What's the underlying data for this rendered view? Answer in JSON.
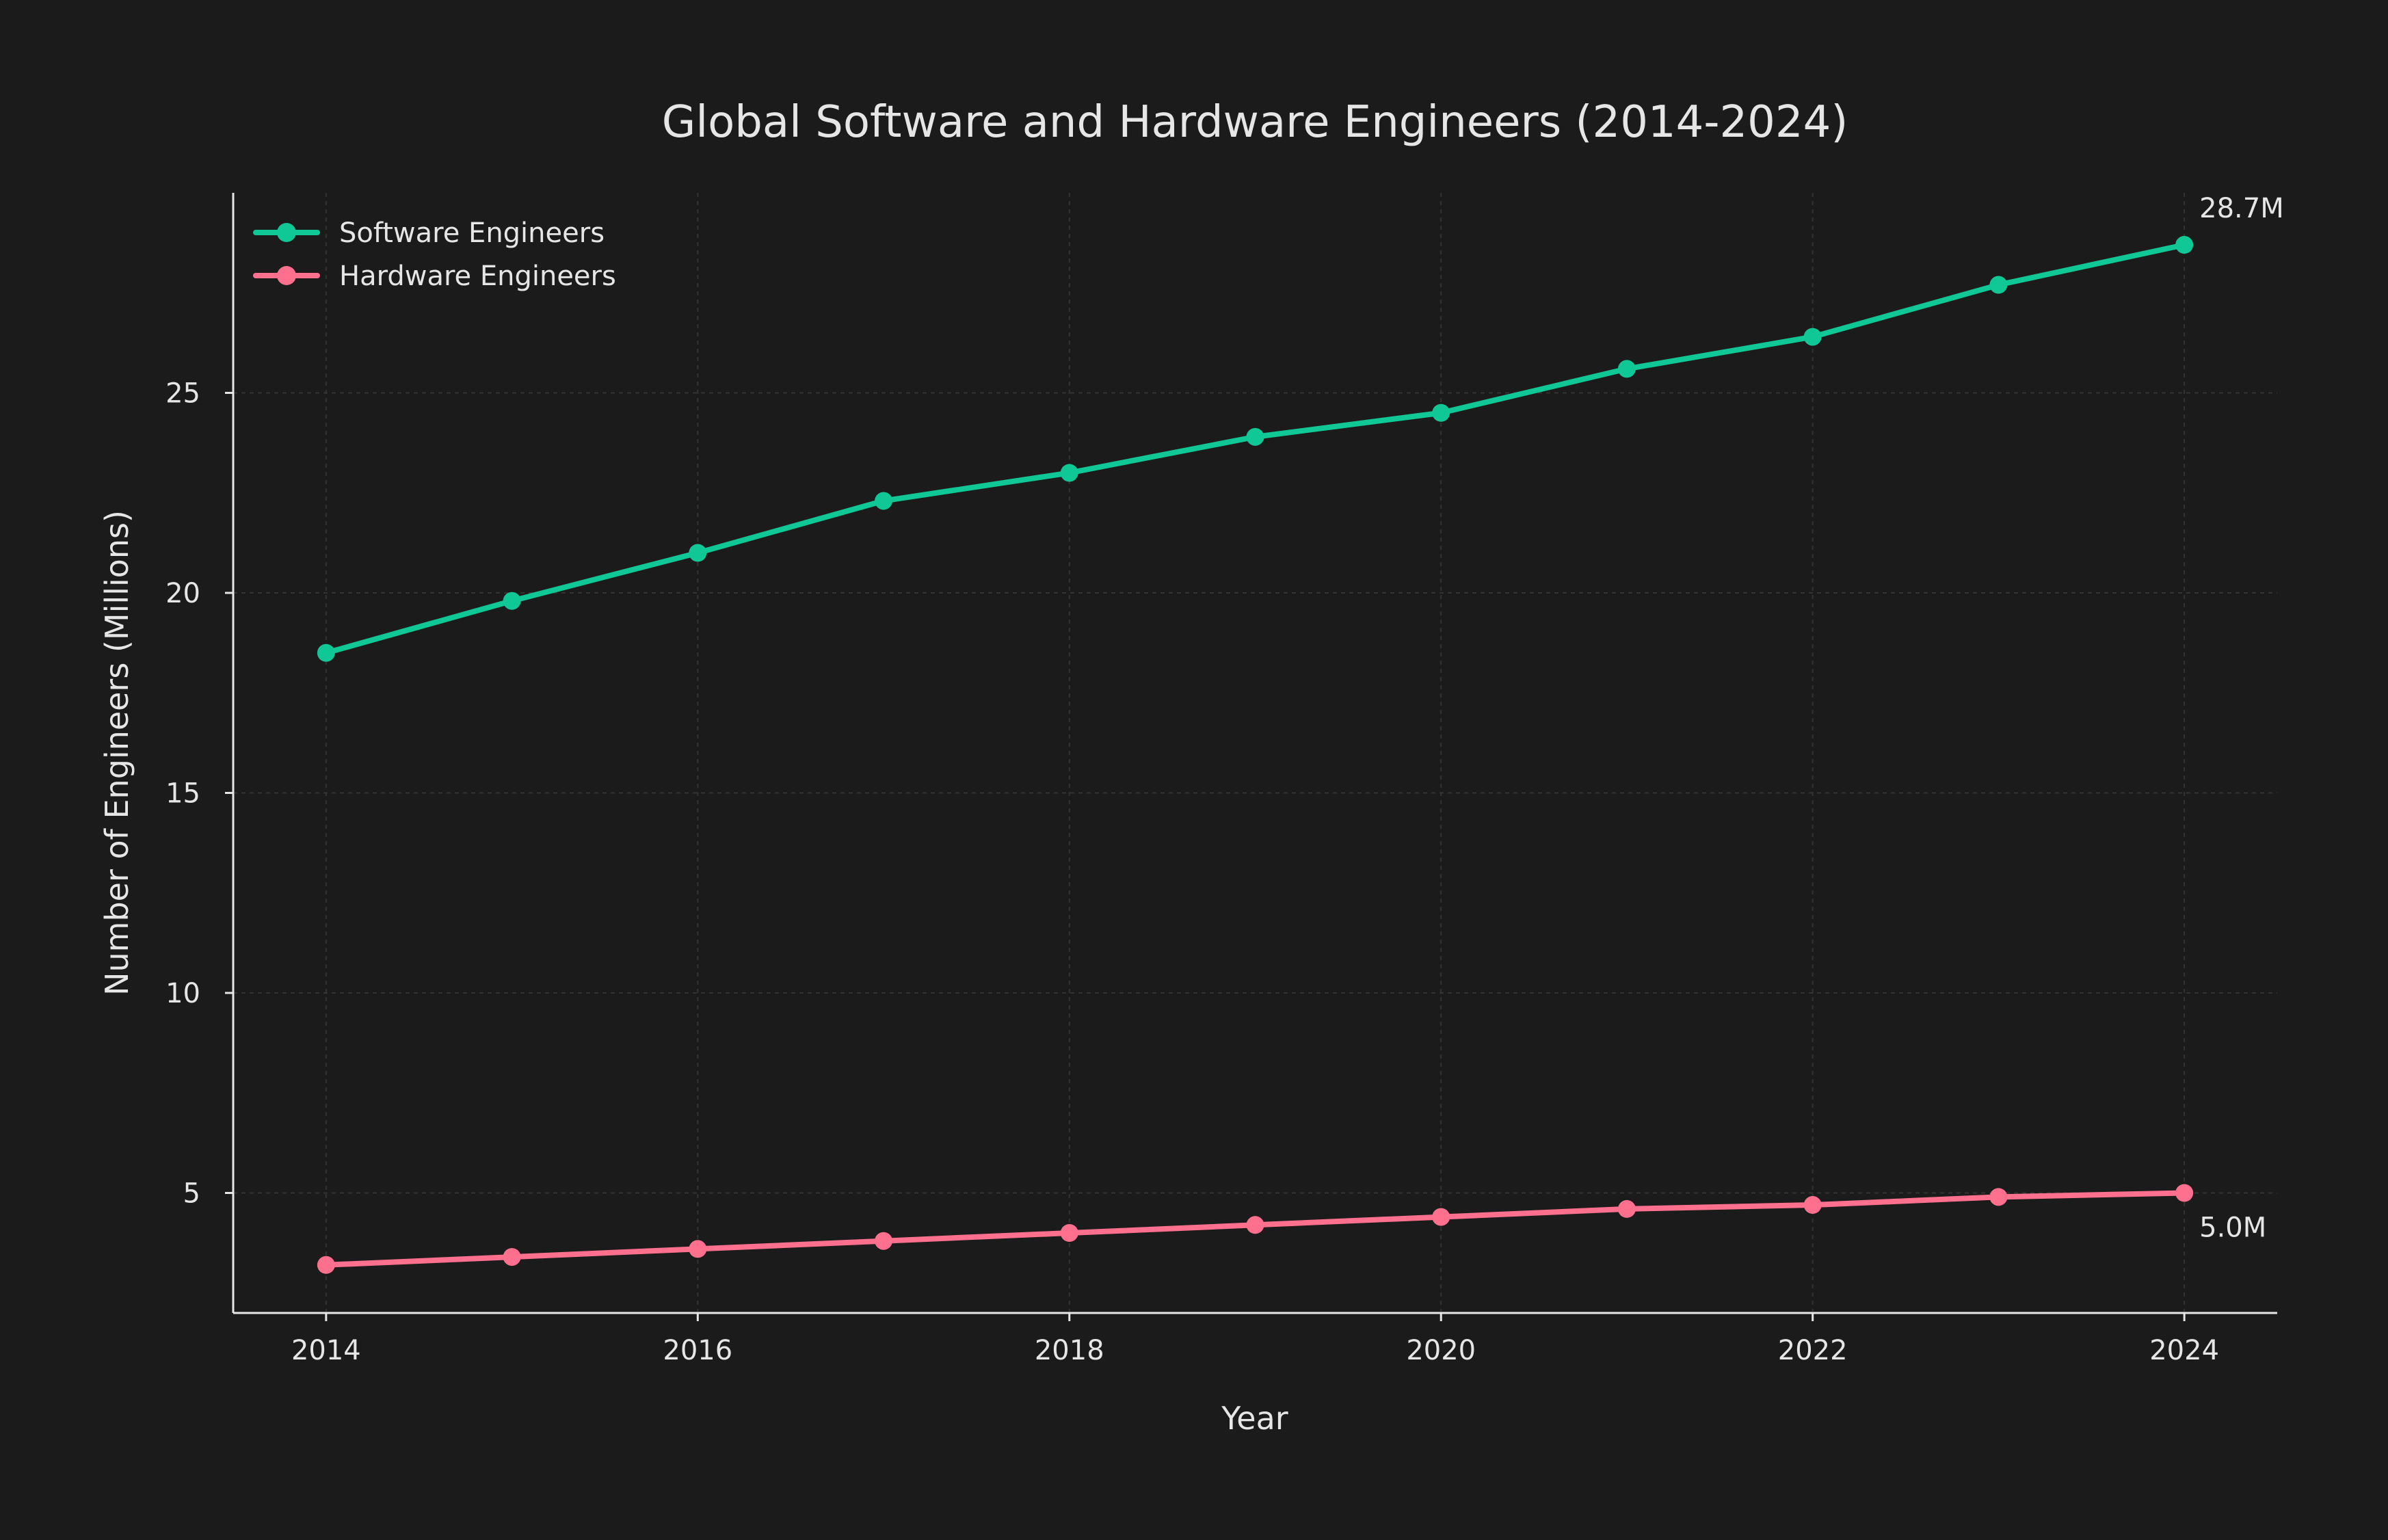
{
  "chart_data": {
    "type": "line",
    "title": "Global Software and Hardware Engineers (2014-2024)",
    "xlabel": "Year",
    "ylabel": "Number of Engineers (Millions)",
    "x": [
      2014,
      2015,
      2016,
      2017,
      2018,
      2019,
      2020,
      2021,
      2022,
      2023,
      2024
    ],
    "x_ticks": [
      "2014",
      "2016",
      "2018",
      "2020",
      "2022",
      "2024"
    ],
    "y_ticks": [
      "5",
      "10",
      "15",
      "20",
      "25"
    ],
    "xlim": [
      2013.5,
      2024.5
    ],
    "ylim": [
      2.0,
      30.0
    ],
    "grid": true,
    "legend_position": "top-left",
    "series": [
      {
        "name": "Software Engineers",
        "color": "#10c796",
        "values": [
          18.5,
          19.8,
          21.0,
          22.3,
          23.0,
          23.9,
          24.5,
          25.6,
          26.4,
          27.7,
          28.7
        ]
      },
      {
        "name": "Hardware Engineers",
        "color": "#ff6f8e",
        "values": [
          3.2,
          3.4,
          3.6,
          3.8,
          4.0,
          4.2,
          4.4,
          4.6,
          4.7,
          4.9,
          5.0
        ]
      }
    ],
    "annotations": [
      {
        "series": 0,
        "label": "28.7M"
      },
      {
        "series": 1,
        "label": "5.0M"
      }
    ]
  }
}
